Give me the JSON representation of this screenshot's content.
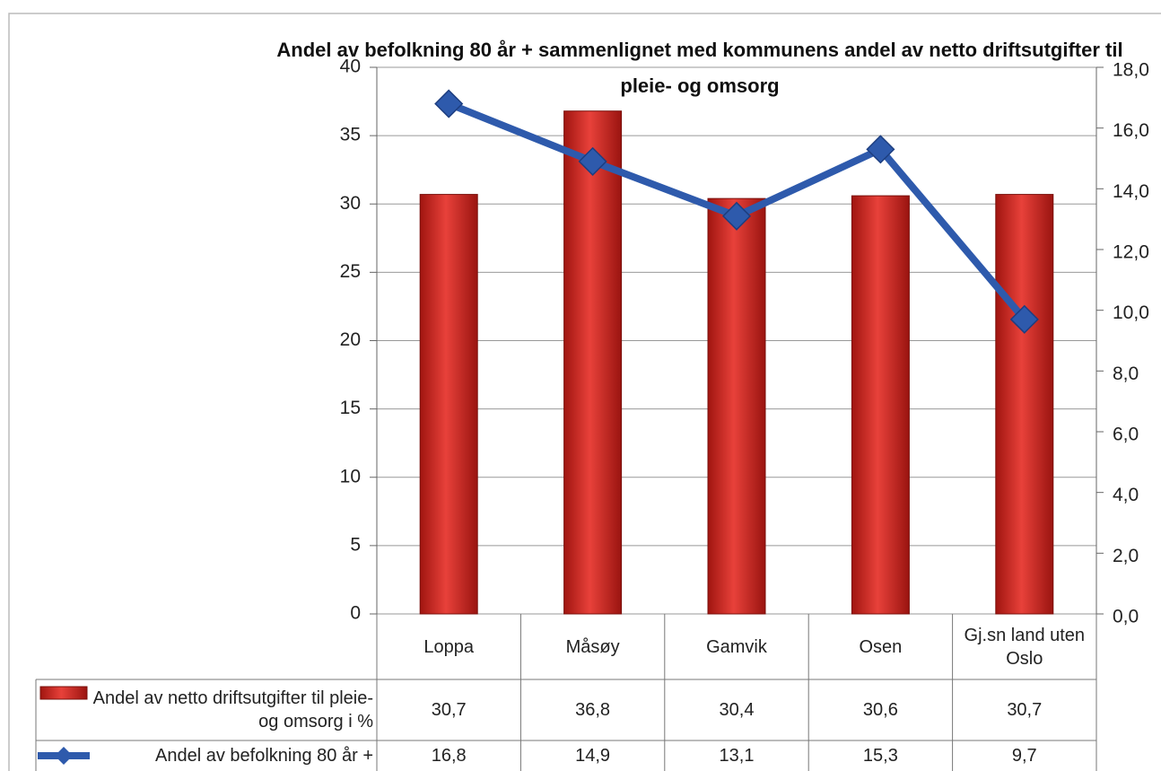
{
  "chart_data": {
    "type": "bar_line",
    "title": "Andel av befolkning 80 år + sammenlignet med kommunens andel av netto driftsutgifter til pleie- og omsorg",
    "categories": [
      "Loppa",
      "Måsøy",
      "Gamvik",
      "Osen",
      "Gj.sn land uten Oslo"
    ],
    "series": [
      {
        "name": "Andel av netto driftsutgifter til pleie- og omsorg i %",
        "color": "#d42a24",
        "type": "bar",
        "axis": "y",
        "values": [
          30.7,
          36.8,
          30.4,
          30.6,
          30.7
        ],
        "value_labels": [
          "30,7",
          "36,8",
          "30,4",
          "30,6",
          "30,7"
        ]
      },
      {
        "name": "Andel av befolkning 80 år +",
        "color": "#2e5aac",
        "type": "line",
        "axis": "y2",
        "values": [
          16.8,
          14.9,
          13.1,
          15.3,
          9.7
        ],
        "value_labels": [
          "16,8",
          "14,9",
          "13,1",
          "15,3",
          "9,7"
        ]
      }
    ],
    "ylim": [
      0,
      40
    ],
    "yticks": [
      0,
      5,
      10,
      15,
      20,
      25,
      30,
      35,
      40
    ],
    "y2lim": [
      0,
      18
    ],
    "y2ticks": [
      {
        "value": 0,
        "label": "0,0"
      },
      {
        "value": 2,
        "label": "2,0"
      },
      {
        "value": 4,
        "label": "4,0"
      },
      {
        "value": 6,
        "label": "6,0"
      },
      {
        "value": 8,
        "label": "8,0"
      },
      {
        "value": 10,
        "label": "10,0"
      },
      {
        "value": 12,
        "label": "12,0"
      },
      {
        "value": 14,
        "label": "14,0"
      },
      {
        "value": 16,
        "label": "16,0"
      },
      {
        "value": 18,
        "label": "18,0"
      }
    ],
    "grid": true
  }
}
